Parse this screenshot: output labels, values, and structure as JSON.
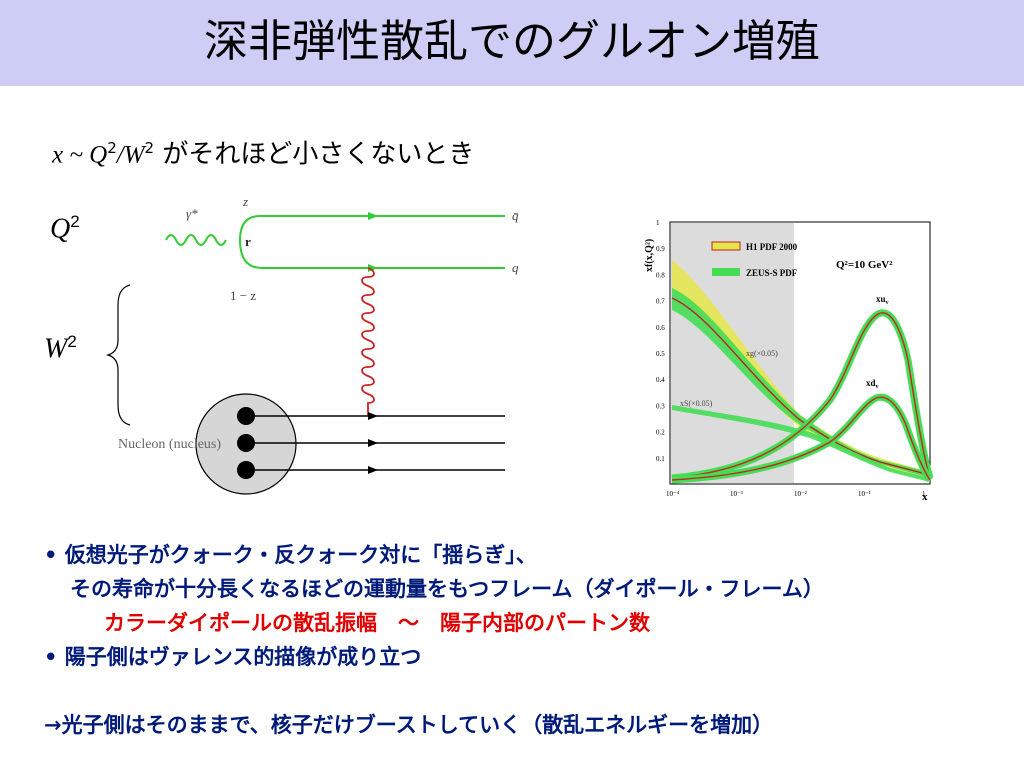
{
  "slide": {
    "title": "深非弾性散乱でのグルオン増殖",
    "subtitle_math_x": "x",
    "subtitle_math_sep": " ~ ",
    "subtitle_math_Q": "Q",
    "subtitle_math_exp1": "2",
    "subtitle_math_slash": "/",
    "subtitle_math_W": "W",
    "subtitle_math_exp2": "2",
    "subtitle_text": " がそれほど小さくないとき",
    "label_Q": "Q",
    "label_Q_exp": "2",
    "label_W": "W",
    "label_W_exp": "2",
    "colors": {
      "title_bar": "#cdcdf5",
      "bullet_text": "#001a7a",
      "highlight": "#e00000",
      "photon_line": "#33cc33",
      "gluon": "#cc2222"
    }
  },
  "diagram": {
    "gamma_label": "γ*",
    "z_label": "z",
    "r_label": "r",
    "one_minus_z_label": "1 − z",
    "qbar_label": "q̄",
    "q_label": "q",
    "nucleon_label": "Nucleon (nucleus)"
  },
  "plot": {
    "ylabel": "xf(x,Q²)",
    "legend": [
      "H1 PDF 2000",
      "ZEUS-S PDF"
    ],
    "q2_label": "Q²=10 GeV²",
    "xu_label": "xu",
    "xu_sub": "v",
    "xd_label": "xd",
    "xd_sub": "v",
    "xg_label": "xg(×0.05)",
    "xs_label": "xS(×0.05)",
    "xlabel": "x",
    "x_ticks": [
      "10⁻⁴",
      "10⁻³",
      "10⁻²",
      "10⁻¹",
      "1"
    ],
    "y_ticks": [
      "0.1",
      "0.2",
      "0.3",
      "0.4",
      "0.5",
      "0.6",
      "0.7",
      "0.8",
      "0.9",
      "1"
    ]
  },
  "bullets": {
    "b1_line1": "• 仮想光子がクォーク・反クォーク対に「揺らぎ」、",
    "b1_line2": "その寿命が十分長くなるほどの運動量をもつフレーム（ダイポール・フレーム）",
    "b1_line3": "カラーダイポールの散乱振幅　～　陽子内部のパートン数",
    "b2_line1": "• 陽子側はヴァレンス的描像が成り立つ",
    "b3_line1": "→光子側はそのままで、核子だけブーストしていく（散乱エネルギーを増加）"
  }
}
